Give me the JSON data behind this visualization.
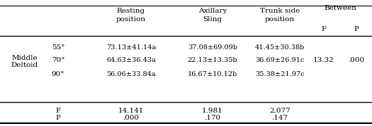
{
  "angles": [
    "55°",
    "70°",
    "90°"
  ],
  "row_label_line1": "Middle",
  "row_label_line2": "Deltoid",
  "col1_header_line1": "Resting",
  "col1_header_line2": "position",
  "col2_header_line1": "Axillary",
  "col2_header_line2": "Sling",
  "col3_header_line1": "Trunk side",
  "col3_header_line2": "position",
  "between_header": "Between",
  "between_F_label": "F",
  "between_P_label": "P",
  "data_col1": [
    "73.13±41.14a",
    "64.63±36.43a",
    "56.06±33.84a"
  ],
  "data_col2": [
    "37.08±69.09b",
    "22.13±13.35b",
    "16.67±10.12b"
  ],
  "data_col3": [
    "41.45±30.38b",
    "36.69±26.91c",
    "35.38±21.97c"
  ],
  "between_F_vals": [
    "",
    "13.32",
    ""
  ],
  "between_P_vals": [
    "",
    ".000",
    ""
  ],
  "stat_labels": [
    "F",
    "P"
  ],
  "stat_col1": [
    "14.141",
    ".000"
  ],
  "stat_col2": [
    "1.981",
    ".170"
  ],
  "stat_col3": [
    "2.077",
    ".147"
  ],
  "font_family": "serif",
  "font_size": 7.5,
  "bg_color": "#ffffff",
  "text_color": "#000000"
}
